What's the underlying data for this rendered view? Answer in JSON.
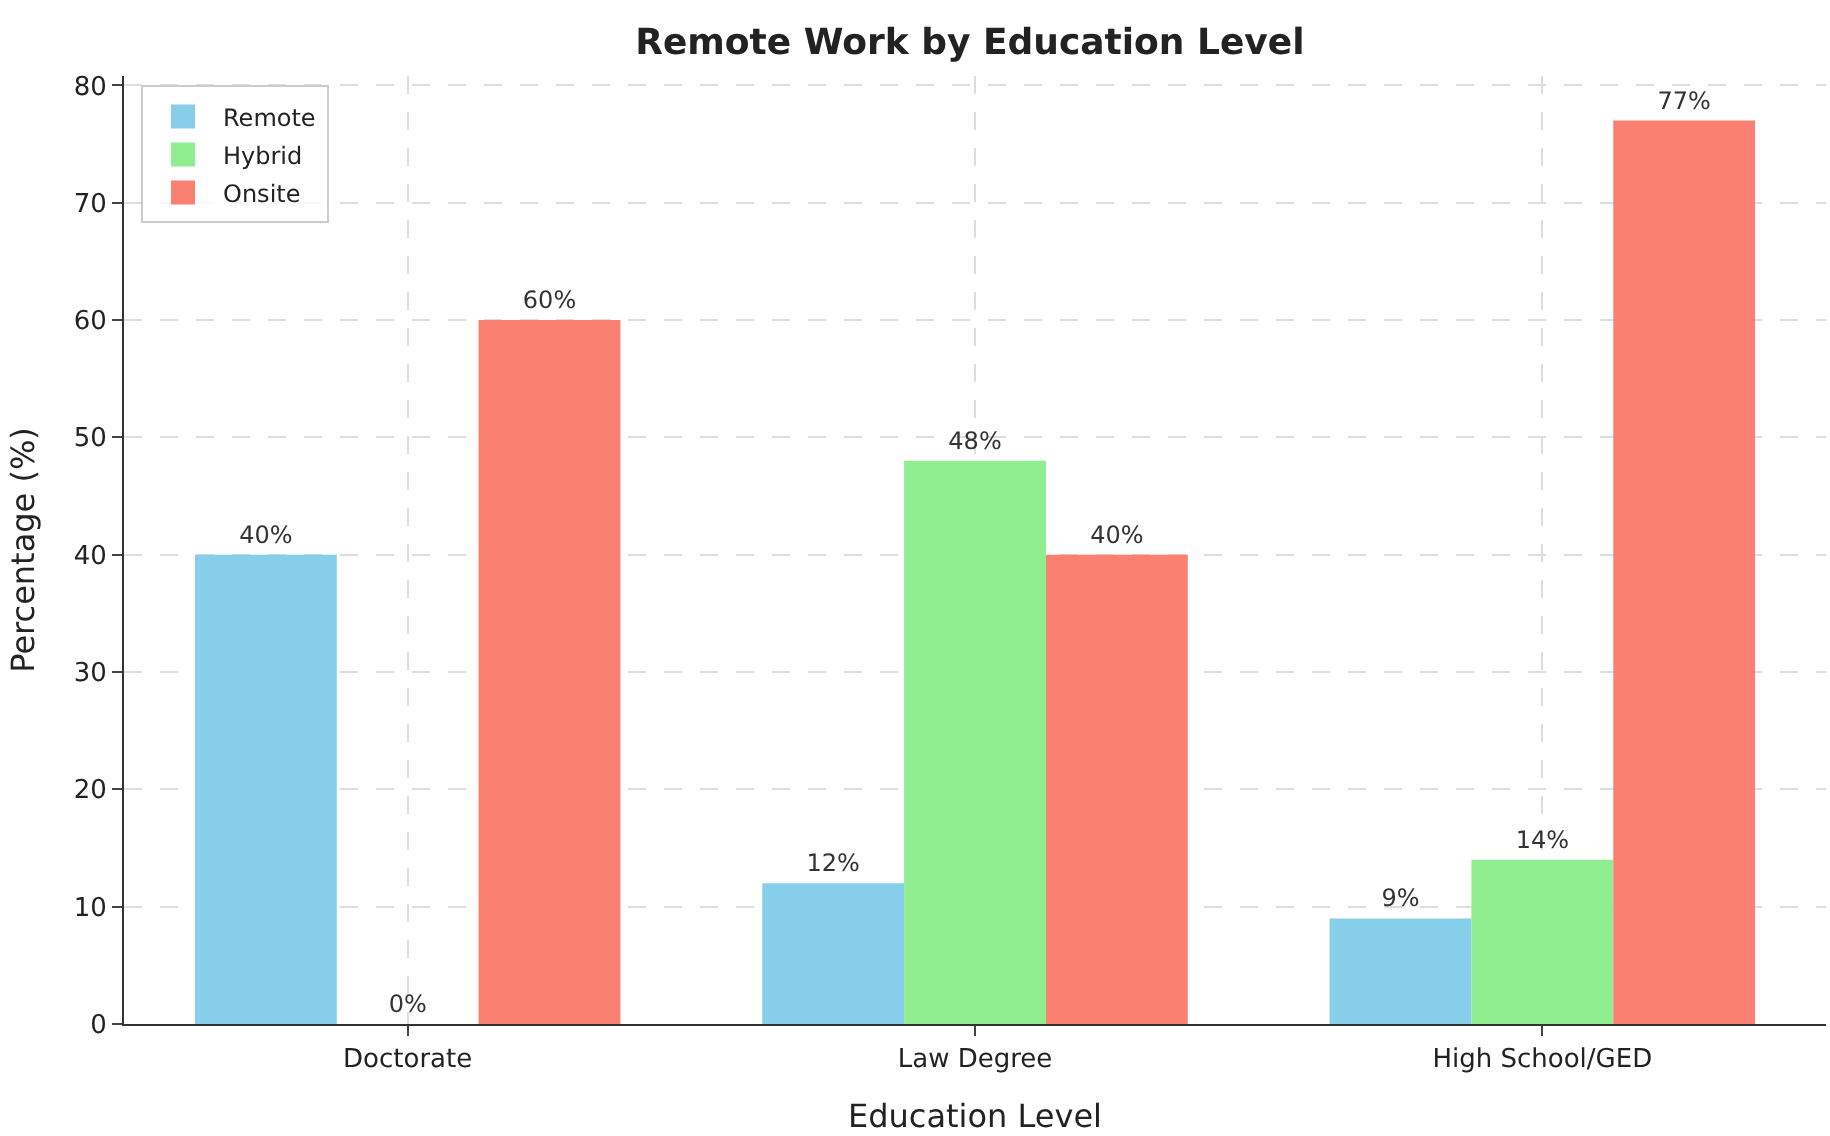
{
  "chart_data": {
    "type": "bar",
    "title": "Remote Work by Education Level",
    "xlabel": "Education Level",
    "ylabel": "Percentage (%)",
    "categories": [
      "Doctorate",
      "Law Degree",
      "High School/GED"
    ],
    "series": [
      {
        "name": "Remote",
        "color": "#87ceeb",
        "values": [
          40,
          12,
          9
        ],
        "value_labels": [
          "40%",
          "12%",
          "9%"
        ]
      },
      {
        "name": "Hybrid",
        "color": "#90ee90",
        "values": [
          0,
          48,
          14
        ],
        "value_labels": [
          "0%",
          "48%",
          "14%"
        ]
      },
      {
        "name": "Onsite",
        "color": "#fa8072",
        "values": [
          60,
          40,
          77
        ],
        "value_labels": [
          "60%",
          "40%",
          "77%"
        ]
      }
    ],
    "ylim": [
      0,
      80.8
    ],
    "yticks": [
      0,
      10,
      20,
      30,
      40,
      50,
      60,
      70,
      80
    ],
    "grid": true,
    "legend": "top left"
  }
}
